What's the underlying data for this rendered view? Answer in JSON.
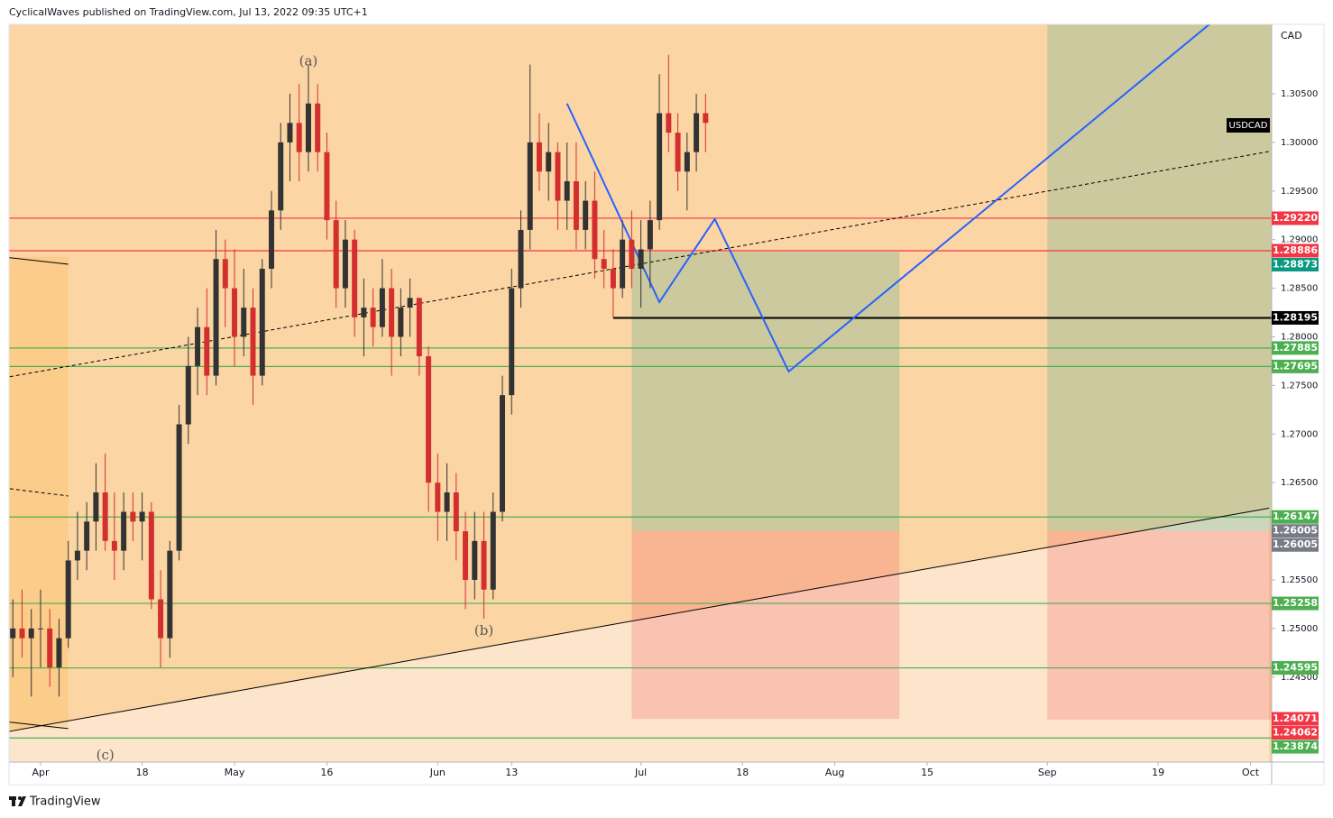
{
  "chart_data": {
    "type": "candlestick",
    "header": "CyclicalWaves published on TradingView.com, Jul 13, 2022 09:35 UTC+1",
    "brand": "TradingView",
    "symbol": "USDCAD",
    "currency": "CAD",
    "background": "#fcd5a4",
    "up_color": "#333333",
    "down_color": "#d32f2f",
    "x": [
      "2022-03-28",
      "2022-03-29",
      "2022-03-30",
      "2022-03-31",
      "2022-04-01",
      "2022-04-04",
      "2022-04-05",
      "2022-04-06",
      "2022-04-07",
      "2022-04-08",
      "2022-04-11",
      "2022-04-12",
      "2022-04-13",
      "2022-04-14",
      "2022-04-15",
      "2022-04-18",
      "2022-04-19",
      "2022-04-20",
      "2022-04-21",
      "2022-04-22",
      "2022-04-25",
      "2022-04-26",
      "2022-04-27",
      "2022-04-28",
      "2022-04-29",
      "2022-05-02",
      "2022-05-03",
      "2022-05-04",
      "2022-05-05",
      "2022-05-06",
      "2022-05-09",
      "2022-05-10",
      "2022-05-11",
      "2022-05-12",
      "2022-05-13",
      "2022-05-16",
      "2022-05-17",
      "2022-05-18",
      "2022-05-19",
      "2022-05-20",
      "2022-05-23",
      "2022-05-24",
      "2022-05-25",
      "2022-05-26",
      "2022-05-27",
      "2022-05-30",
      "2022-05-31",
      "2022-06-01",
      "2022-06-02",
      "2022-06-03",
      "2022-06-06",
      "2022-06-07",
      "2022-06-08",
      "2022-06-09",
      "2022-06-10",
      "2022-06-13",
      "2022-06-14",
      "2022-06-15",
      "2022-06-16",
      "2022-06-17",
      "2022-06-20",
      "2022-06-21",
      "2022-06-22",
      "2022-06-23",
      "2022-06-24",
      "2022-06-27",
      "2022-06-28",
      "2022-06-29",
      "2022-06-30",
      "2022-07-01",
      "2022-07-04",
      "2022-07-05",
      "2022-07-06",
      "2022-07-07",
      "2022-07-08",
      "2022-07-11",
      "2022-07-12"
    ],
    "open": [
      1.251,
      1.249,
      1.25,
      1.249,
      1.25,
      1.25,
      1.246,
      1.249,
      1.257,
      1.258,
      1.261,
      1.264,
      1.259,
      1.258,
      1.262,
      1.261,
      1.262,
      1.253,
      1.249,
      1.258,
      1.271,
      1.277,
      1.281,
      1.276,
      1.288,
      1.285,
      1.28,
      1.283,
      1.276,
      1.287,
      1.293,
      1.3,
      1.302,
      1.299,
      1.304,
      1.299,
      1.292,
      1.285,
      1.29,
      1.282,
      1.283,
      1.281,
      1.285,
      1.28,
      1.283,
      1.284,
      1.278,
      1.265,
      1.262,
      1.264,
      1.26,
      1.255,
      1.259,
      1.254,
      1.262,
      1.274,
      1.285,
      1.291,
      1.3,
      1.297,
      1.299,
      1.294,
      1.296,
      1.291,
      1.294,
      1.288,
      1.287,
      1.285,
      1.29,
      1.287,
      1.289,
      1.292,
      1.303,
      1.301,
      1.297,
      1.299,
      1.303
    ],
    "high": [
      1.256,
      1.253,
      1.254,
      1.252,
      1.254,
      1.252,
      1.251,
      1.259,
      1.262,
      1.263,
      1.267,
      1.268,
      1.264,
      1.264,
      1.264,
      1.264,
      1.263,
      1.256,
      1.259,
      1.273,
      1.28,
      1.283,
      1.285,
      1.291,
      1.29,
      1.289,
      1.287,
      1.285,
      1.288,
      1.295,
      1.302,
      1.305,
      1.306,
      1.308,
      1.306,
      1.301,
      1.294,
      1.292,
      1.291,
      1.286,
      1.285,
      1.288,
      1.287,
      1.285,
      1.286,
      1.284,
      1.279,
      1.268,
      1.267,
      1.266,
      1.262,
      1.262,
      1.262,
      1.264,
      1.276,
      1.287,
      1.293,
      1.308,
      1.303,
      1.302,
      1.3,
      1.3,
      1.3,
      1.296,
      1.297,
      1.291,
      1.289,
      1.292,
      1.293,
      1.292,
      1.294,
      1.307,
      1.309,
      1.303,
      1.301,
      1.305,
      1.305
    ],
    "low": [
      1.248,
      1.245,
      1.247,
      1.243,
      1.246,
      1.244,
      1.243,
      1.248,
      1.255,
      1.256,
      1.258,
      1.258,
      1.255,
      1.256,
      1.259,
      1.257,
      1.252,
      1.246,
      1.247,
      1.257,
      1.269,
      1.274,
      1.274,
      1.275,
      1.281,
      1.277,
      1.278,
      1.273,
      1.275,
      1.285,
      1.291,
      1.296,
      1.296,
      1.297,
      1.297,
      1.29,
      1.283,
      1.283,
      1.28,
      1.278,
      1.279,
      1.28,
      1.276,
      1.278,
      1.28,
      1.276,
      1.262,
      1.259,
      1.259,
      1.257,
      1.252,
      1.253,
      1.251,
      1.253,
      1.261,
      1.272,
      1.283,
      1.289,
      1.295,
      1.294,
      1.291,
      1.291,
      1.289,
      1.289,
      1.286,
      1.285,
      1.282,
      1.284,
      1.285,
      1.283,
      1.285,
      1.291,
      1.299,
      1.295,
      1.293,
      1.297,
      1.299
    ],
    "close": [
      1.249,
      1.25,
      1.249,
      1.25,
      1.25,
      1.246,
      1.249,
      1.257,
      1.258,
      1.261,
      1.264,
      1.259,
      1.258,
      1.262,
      1.261,
      1.262,
      1.253,
      1.249,
      1.258,
      1.271,
      1.277,
      1.281,
      1.276,
      1.288,
      1.285,
      1.28,
      1.283,
      1.276,
      1.287,
      1.293,
      1.3,
      1.302,
      1.299,
      1.304,
      1.299,
      1.292,
      1.285,
      1.29,
      1.282,
      1.283,
      1.281,
      1.285,
      1.28,
      1.283,
      1.284,
      1.278,
      1.265,
      1.262,
      1.264,
      1.26,
      1.255,
      1.259,
      1.254,
      1.262,
      1.274,
      1.285,
      1.291,
      1.3,
      1.297,
      1.299,
      1.294,
      1.296,
      1.291,
      1.294,
      1.288,
      1.287,
      1.285,
      1.29,
      1.287,
      1.289,
      1.292,
      1.303,
      1.301,
      1.297,
      1.299,
      1.303,
      1.302
    ],
    "xlim": [
      "2022-03-28",
      "2022-10-05"
    ],
    "xticks": [
      {
        "value": "2022-04-01",
        "label": "Apr"
      },
      {
        "value": "2022-04-18",
        "label": "18"
      },
      {
        "value": "2022-05-02",
        "label": "May"
      },
      {
        "value": "2022-05-16",
        "label": "16"
      },
      {
        "value": "2022-06-01",
        "label": "Jun"
      },
      {
        "value": "2022-06-13",
        "label": "13"
      },
      {
        "value": "2022-07-01",
        "label": "Jul"
      },
      {
        "value": "2022-07-18",
        "label": "18"
      },
      {
        "value": "2022-08-01",
        "label": "Aug"
      },
      {
        "value": "2022-08-15",
        "label": "15"
      },
      {
        "value": "2022-09-01",
        "label": "Sep"
      },
      {
        "value": "2022-09-19",
        "label": "19"
      },
      {
        "value": "2022-10-03",
        "label": "Oct"
      }
    ],
    "ylim": [
      1.23626,
      1.31214
    ],
    "yticks": [
      {
        "value": 1.245,
        "label": "1.24500"
      },
      {
        "value": 1.25,
        "label": "1.25000"
      },
      {
        "value": 1.255,
        "label": "1.25500"
      },
      {
        "value": 1.26,
        "label": "1.26000"
      },
      {
        "value": 1.265,
        "label": "1.26500"
      },
      {
        "value": 1.27,
        "label": "1.27000"
      },
      {
        "value": 1.275,
        "label": "1.27500"
      },
      {
        "value": 1.28,
        "label": "1.28000"
      },
      {
        "value": 1.285,
        "label": "1.28500"
      },
      {
        "value": 1.29,
        "label": "1.29000"
      },
      {
        "value": 1.295,
        "label": "1.29500"
      },
      {
        "value": 1.3,
        "label": "1.30000"
      },
      {
        "value": 1.305,
        "label": "1.30500"
      }
    ],
    "price_tags": [
      {
        "value": 1.2922,
        "label": "1.29220",
        "color": "#f23645",
        "line": "#f23645"
      },
      {
        "value": 1.28886,
        "label": "1.28886",
        "color": "#f23645",
        "line": "#f23645"
      },
      {
        "value": 1.28873,
        "label": "1.28873",
        "color": "#089981"
      },
      {
        "value": 1.28195,
        "label": "1.28195",
        "color": "#000000",
        "line": "#000000",
        "line_from": "2022-06-28"
      },
      {
        "value": 1.27885,
        "label": "1.27885",
        "color": "#4caf50",
        "line": "#4caf50"
      },
      {
        "value": 1.27695,
        "label": "1.27695",
        "color": "#4caf50",
        "line": "#4caf50"
      },
      {
        "value": 1.26147,
        "label": "1.26147",
        "color": "#4caf50",
        "line": "#4caf50"
      },
      {
        "value": 1.26005,
        "label": "1.26005",
        "color": "#787b86"
      },
      {
        "value": 1.26005,
        "label": "1.26005",
        "color": "#787b86"
      },
      {
        "value": 1.25258,
        "label": "1.25258",
        "color": "#4caf50",
        "line": "#4caf50"
      },
      {
        "value": 1.24595,
        "label": "1.24595",
        "color": "#4caf50",
        "line": "#4caf50"
      },
      {
        "value": 1.24071,
        "label": "1.24071",
        "color": "#f23645"
      },
      {
        "value": 1.24062,
        "label": "1.24062",
        "color": "#f23645"
      },
      {
        "value": 1.23874,
        "label": "1.23874",
        "color": "#4caf50",
        "line": "#4caf50"
      }
    ],
    "boxes": [
      {
        "x0": "2022-03-28",
        "x1": "2022-04-06",
        "top": 1.28821,
        "bottom": 1.2397,
        "color": "#ff9800",
        "opacity": 0.15
      },
      {
        "x0": "2022-06-30",
        "x1": "2022-08-10",
        "top": 1.28873,
        "bottom": 1.26005,
        "color": "#089981",
        "opacity": 0.2
      },
      {
        "x0": "2022-06-30",
        "x1": "2022-08-10",
        "top": 1.26005,
        "bottom": 1.24071,
        "color": "#f23645",
        "opacity": 0.2
      },
      {
        "x0": "2022-09-01",
        "x1": "2022-10-10",
        "top": 1.315,
        "bottom": 1.26005,
        "color": "#089981",
        "opacity": 0.2
      },
      {
        "x0": "2022-09-01",
        "x1": "2022-10-10",
        "top": 1.26005,
        "bottom": 1.24062,
        "color": "#f23645",
        "opacity": 0.2
      }
    ],
    "lines": [
      {
        "points": [
          [
            "2022-03-28",
            1.23932
          ],
          [
            "2022-10-05",
            1.26237
          ]
        ],
        "color": "#000000",
        "width": 1,
        "fill_below": "#fde5cc"
      },
      {
        "points": [
          [
            "2022-03-28",
            1.27578
          ],
          [
            "2022-10-05",
            1.29906
          ]
        ],
        "color": "#000000",
        "width": 1,
        "dash": true
      },
      {
        "points": [
          [
            "2022-03-28",
            1.28821
          ],
          [
            "2022-04-06",
            1.28747
          ]
        ],
        "color": "#000000",
        "width": 1
      },
      {
        "points": [
          [
            "2022-03-28",
            1.26446
          ],
          [
            "2022-04-06",
            1.26363
          ]
        ],
        "color": "#000000",
        "width": 1,
        "dash": true
      },
      {
        "points": [
          [
            "2022-03-28",
            1.24044
          ],
          [
            "2022-04-06",
            1.2397
          ]
        ],
        "color": "#000000",
        "width": 1
      },
      {
        "points": [
          [
            "2022-06-21",
            1.304
          ],
          [
            "2022-07-05",
            1.28357
          ],
          [
            "2022-07-13",
            1.29211
          ],
          [
            "2022-07-25",
            1.27643
          ],
          [
            "2022-09-27",
            1.3125
          ]
        ],
        "color": "#2962ff",
        "width": 2
      }
    ],
    "annotations": [
      {
        "text": "(a)",
        "x": "2022-05-12",
        "y": 1.3083
      },
      {
        "text": "(b)",
        "x": "2022-06-08",
        "y": 1.2497
      },
      {
        "text": "(c)",
        "x": "2022-04-12",
        "y": 1.2369
      }
    ]
  }
}
